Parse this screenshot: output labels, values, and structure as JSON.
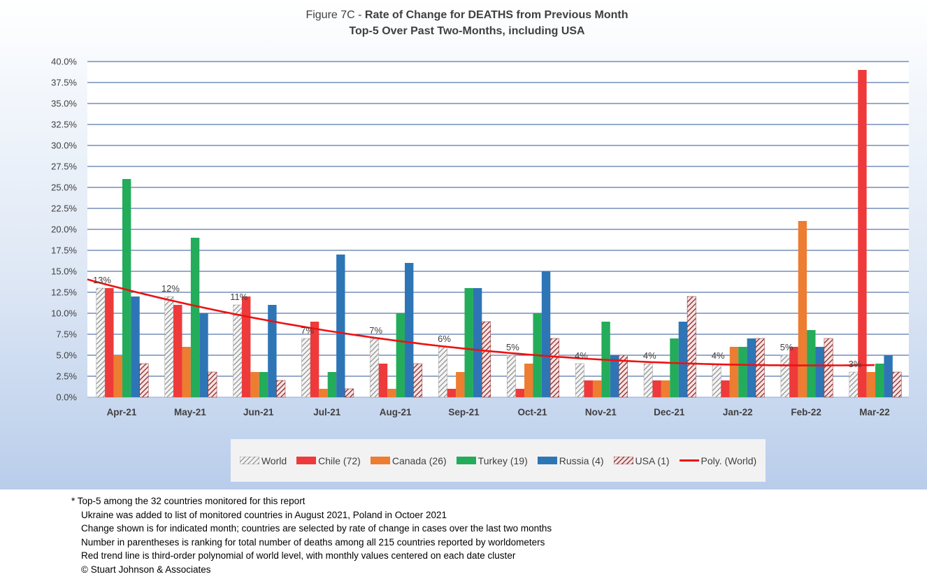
{
  "title_prefix": "Figure 7C - ",
  "title_bold": "Rate of Change for DEATHS from Previous Month",
  "subtitle": "Top-5 Over Past Two-Months, including USA",
  "legend": {
    "world": "World",
    "chile": "Chile (72)",
    "canada": "Canada (26)",
    "turkey": "Turkey (19)",
    "russia": "Russia (4)",
    "usa": "USA (1)",
    "trend": "Poly. (World)"
  },
  "footnotes": {
    "line1": "* Top-5 among the 32 countries monitored for this report",
    "line2": "Ukraine was added to list of monitored countries in August 2021, Poland in Octoer 2021",
    "line3": "Change shown is for indicated month; countries are selected by rate of change in cases over the last two months",
    "line4": "Number in parentheses is ranking for total number of deaths among all 215 countries reported by worldometers",
    "line5": "Red trend line is third-order polynomial of world level, with monthly values centered on each date cluster",
    "line6": "© Stuart Johnson & Associates"
  },
  "chart_data": {
    "type": "bar",
    "categories": [
      "Apr-21",
      "May-21",
      "Jun-21",
      "Jul-21",
      "Aug-21",
      "Sep-21",
      "Oct-21",
      "Nov-21",
      "Dec-21",
      "Jan-22",
      "Feb-22",
      "Mar-22"
    ],
    "ylim": [
      0,
      40
    ],
    "y_ticks": [
      0,
      2.5,
      5,
      7.5,
      10,
      12.5,
      15,
      17.5,
      20,
      22.5,
      25,
      27.5,
      30,
      32.5,
      35,
      37.5,
      40
    ],
    "y_tick_labels": [
      "0.0%",
      "2.5%",
      "5.0%",
      "7.5%",
      "10.0%",
      "12.5%",
      "15.0%",
      "17.5%",
      "20.0%",
      "22.5%",
      "25.0%",
      "27.5%",
      "30.0%",
      "32.5%",
      "35.0%",
      "37.5%",
      "40.0%"
    ],
    "grid": true,
    "legend_position": "bottom",
    "series": [
      {
        "name": "World",
        "key": "world",
        "color": "#a6a6a6",
        "pattern": "hatch-grey",
        "values": [
          13,
          12,
          11,
          7,
          7,
          6,
          5,
          4,
          4,
          4,
          5,
          3
        ],
        "data_labels": [
          "13%",
          "12%",
          "11%",
          "7%",
          "7%",
          "6%",
          "5%",
          "4%",
          "4%",
          "4%",
          "5%",
          "3%"
        ]
      },
      {
        "name": "Chile (72)",
        "key": "chile",
        "color": "#ee3a3a",
        "values": [
          13,
          11,
          12,
          9,
          4,
          1,
          1,
          2,
          2,
          2,
          6,
          39
        ]
      },
      {
        "name": "Canada (26)",
        "key": "canada",
        "color": "#ed7d31",
        "values": [
          5,
          6,
          3,
          1,
          1,
          3,
          4,
          2,
          2,
          6,
          21,
          3
        ]
      },
      {
        "name": "Turkey (19)",
        "key": "turkey",
        "color": "#23ac5a",
        "values": [
          26,
          19,
          3,
          3,
          10,
          13,
          10,
          9,
          7,
          6,
          8,
          4
        ]
      },
      {
        "name": "Russia (4)",
        "key": "russia",
        "color": "#2e75b6",
        "values": [
          12,
          10,
          11,
          17,
          16,
          13,
          15,
          5,
          9,
          7,
          6,
          5
        ]
      },
      {
        "name": "USA (1)",
        "key": "usa",
        "color": "#8b2a2a",
        "pattern": "hatch-red",
        "values": [
          4,
          3,
          2,
          1,
          4,
          9,
          7,
          5,
          12,
          7,
          7,
          3
        ]
      }
    ],
    "trendline": {
      "name": "Poly. (World)",
      "color": "#ee1111",
      "order": 3,
      "values": [
        12.9,
        11.1,
        9.4,
        7.9,
        6.7,
        5.8,
        5.0,
        4.5,
        4.1,
        3.9,
        3.8,
        3.8
      ]
    }
  }
}
